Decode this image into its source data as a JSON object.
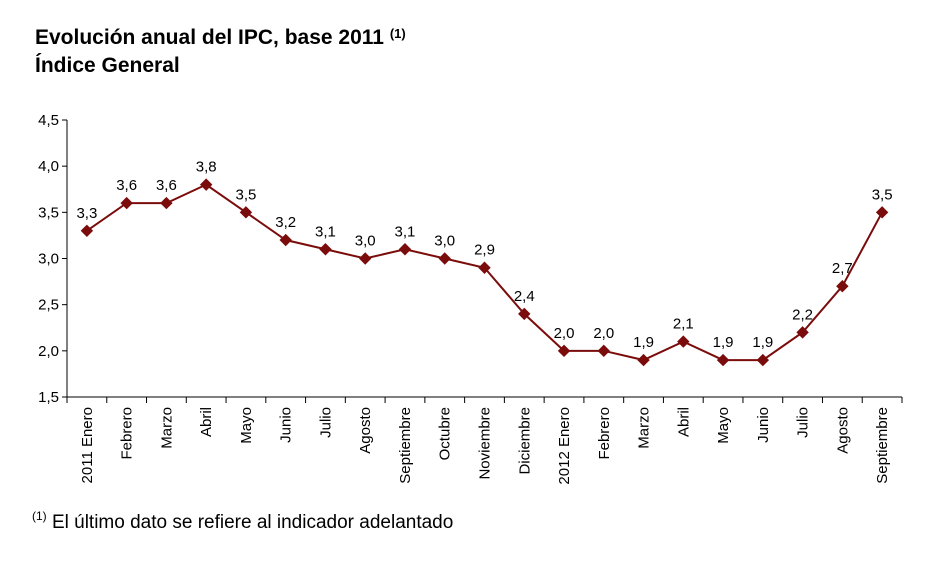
{
  "chart_data": {
    "type": "line",
    "title": "Evolución anual del IPC, base 2011",
    "title_note": "(1)",
    "subtitle": "Índice General",
    "categories": [
      "2011 Enero",
      "Febrero",
      "Marzo",
      "Abril",
      "Mayo",
      "Junio",
      "Julio",
      "Agosto",
      "Septiembre",
      "Octubre",
      "Noviembre",
      "Diciembre",
      "2012 Enero",
      "Febrero",
      "Marzo",
      "Abril",
      "Mayo",
      "Junio",
      "Julio",
      "Agosto",
      "Septiembre"
    ],
    "values": [
      3.3,
      3.6,
      3.6,
      3.8,
      3.5,
      3.2,
      3.1,
      3.0,
      3.1,
      3.0,
      2.9,
      2.4,
      2.0,
      2.0,
      1.9,
      2.1,
      1.9,
      1.9,
      2.2,
      2.7,
      3.5
    ],
    "value_labels": [
      "3,3",
      "3,6",
      "3,6",
      "3,8",
      "3,5",
      "3,2",
      "3,1",
      "3,0",
      "3,1",
      "3,0",
      "2,9",
      "2,4",
      "2,0",
      "2,0",
      "1,9",
      "2,1",
      "1,9",
      "1,9",
      "2,2",
      "2,7",
      "3,5"
    ],
    "ylim": [
      1.5,
      4.5
    ],
    "y_ticks": [
      "1,5",
      "2,0",
      "2,5",
      "3,0",
      "3,5",
      "4,0",
      "4,5"
    ],
    "xlabel": "",
    "ylabel": "",
    "grid": false,
    "legend": "none",
    "line_color": "#7b0c0c",
    "marker": "diamond",
    "footnote_mark": "(1)",
    "footnote": "El último dato se refiere al indicador adelantado"
  }
}
